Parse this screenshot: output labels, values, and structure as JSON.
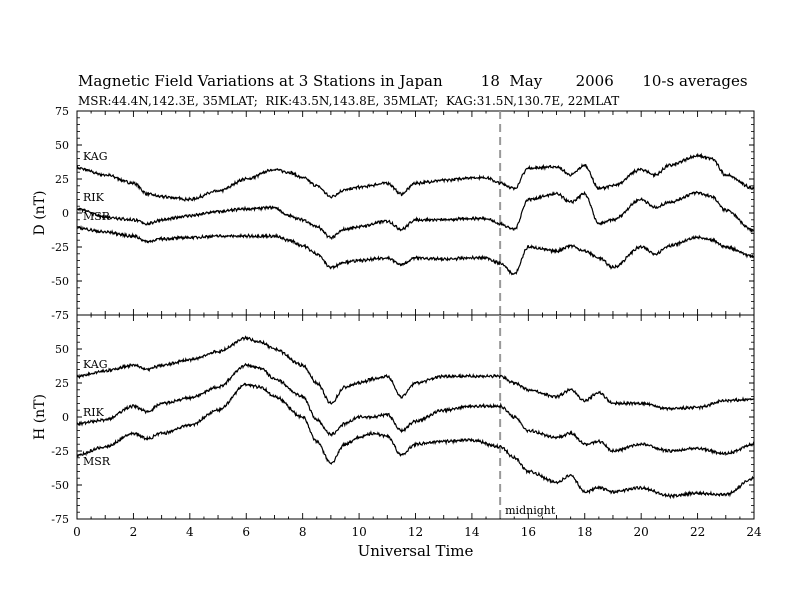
{
  "header": {
    "title": "Magnetic Field Variations at 3 Stations in Japan        18  May       2006      10-s averages",
    "subtitle": "MSR:44.4N,142.3E, 35MLAT;  RIK:43.5N,143.8E, 35MLAT;  KAG:31.5N,130.7E, 22MLAT"
  },
  "chart_data": [
    {
      "type": "line",
      "panel": "D",
      "ylabel": "D (nT)",
      "ylim": [
        -75,
        75
      ],
      "yticks": [
        75,
        50,
        25,
        0,
        -25,
        -50,
        -75
      ],
      "xlim": [
        0,
        24
      ],
      "grid": false,
      "series": [
        {
          "name": "KAG",
          "x": [
            0,
            1,
            2,
            2.5,
            3,
            4,
            5,
            6,
            7,
            7.5,
            8,
            8.5,
            9,
            9.5,
            10,
            11,
            11.5,
            12,
            13,
            14,
            14.5,
            15,
            15.5,
            16,
            17,
            17.5,
            18,
            18.5,
            19,
            20,
            20.5,
            21,
            22,
            22.5,
            23,
            24
          ],
          "values": [
            33,
            28,
            22,
            14,
            12,
            10,
            16,
            25,
            32,
            30,
            26,
            20,
            12,
            17,
            19,
            22,
            14,
            22,
            24,
            26,
            26,
            22,
            18,
            33,
            34,
            28,
            35,
            18,
            20,
            32,
            28,
            35,
            42,
            40,
            28,
            18
          ]
        },
        {
          "name": "RIK",
          "x": [
            0,
            1,
            2,
            2.5,
            3,
            4,
            5,
            6,
            7,
            7.5,
            8,
            8.5,
            9,
            9.5,
            10,
            11,
            11.5,
            12,
            13,
            14,
            14.5,
            15,
            15.5,
            16,
            17,
            17.5,
            18,
            18.5,
            19,
            20,
            20.5,
            21,
            22,
            22.5,
            23,
            24
          ],
          "values": [
            3,
            -3,
            -5,
            -8,
            -5,
            -2,
            1,
            3,
            4,
            -2,
            -5,
            -10,
            -18,
            -12,
            -10,
            -6,
            -12,
            -5,
            -5,
            -4,
            -4,
            -8,
            -12,
            10,
            14,
            8,
            14,
            -8,
            -5,
            10,
            4,
            8,
            15,
            12,
            2,
            -13
          ]
        },
        {
          "name": "MSR",
          "x": [
            0,
            1,
            2,
            2.5,
            3,
            4,
            5,
            6,
            7,
            7.5,
            8,
            8.5,
            9,
            9.5,
            10,
            11,
            11.5,
            12,
            13,
            14,
            14.5,
            15,
            15.5,
            16,
            17,
            17.5,
            18,
            18.5,
            19,
            20,
            20.5,
            21,
            22,
            22.5,
            23,
            24
          ],
          "values": [
            -11,
            -14,
            -17,
            -21,
            -19,
            -18,
            -17,
            -17,
            -17,
            -20,
            -24,
            -30,
            -40,
            -36,
            -35,
            -33,
            -38,
            -33,
            -34,
            -33,
            -33,
            -37,
            -45,
            -25,
            -28,
            -24,
            -28,
            -33,
            -40,
            -25,
            -30,
            -24,
            -18,
            -20,
            -25,
            -32
          ]
        }
      ],
      "annotations": [
        {
          "text": "midnight",
          "x": 15
        }
      ]
    },
    {
      "type": "line",
      "panel": "H",
      "ylabel": "H (nT)",
      "xlabel": "Universal Time",
      "ylim": [
        -75,
        75
      ],
      "yticks": [
        50,
        25,
        0,
        -25,
        -50,
        -75
      ],
      "xlim": [
        0,
        24
      ],
      "xticks": [
        0,
        2,
        4,
        6,
        8,
        10,
        12,
        14,
        16,
        18,
        20,
        22,
        24
      ],
      "grid": false,
      "series": [
        {
          "name": "KAG",
          "x": [
            0,
            1,
            2,
            2.5,
            3,
            4,
            5,
            6,
            6.5,
            7,
            8,
            8.5,
            9,
            9.5,
            10,
            10.5,
            11,
            11.5,
            12,
            13,
            14,
            15,
            15.5,
            16,
            17,
            17.5,
            18,
            18.5,
            19,
            20,
            21,
            22,
            23,
            24
          ],
          "values": [
            30,
            34,
            38,
            35,
            38,
            42,
            48,
            58,
            55,
            50,
            38,
            25,
            10,
            22,
            25,
            28,
            30,
            15,
            25,
            30,
            30,
            30,
            25,
            20,
            15,
            20,
            12,
            18,
            10,
            10,
            6,
            7,
            12,
            13
          ]
        },
        {
          "name": "RIK",
          "x": [
            0,
            1,
            2,
            2.5,
            3,
            4,
            5,
            6,
            6.5,
            7,
            8,
            8.5,
            9,
            9.5,
            10,
            10.5,
            11,
            11.5,
            12,
            13,
            14,
            15,
            15.5,
            16,
            17,
            17.5,
            18,
            18.5,
            19,
            20,
            21,
            22,
            23,
            24
          ],
          "values": [
            -5,
            -2,
            8,
            4,
            10,
            14,
            22,
            38,
            36,
            28,
            15,
            -2,
            -13,
            -5,
            0,
            0,
            2,
            -10,
            -3,
            5,
            8,
            8,
            0,
            -10,
            -15,
            -12,
            -20,
            -18,
            -25,
            -20,
            -25,
            -23,
            -27,
            -20
          ]
        },
        {
          "name": "MSR",
          "x": [
            0,
            1,
            2,
            2.5,
            3,
            4,
            5,
            6,
            6.5,
            7,
            8,
            8.5,
            9,
            9.5,
            10,
            10.5,
            11,
            11.5,
            12,
            13,
            14,
            15,
            15.5,
            16,
            17,
            17.5,
            18,
            18.5,
            19,
            20,
            21,
            22,
            23,
            24
          ],
          "values": [
            -28,
            -22,
            -12,
            -16,
            -12,
            -6,
            5,
            24,
            22,
            15,
            0,
            -18,
            -34,
            -20,
            -15,
            -12,
            -14,
            -28,
            -20,
            -18,
            -17,
            -22,
            -30,
            -40,
            -48,
            -43,
            -55,
            -52,
            -55,
            -52,
            -58,
            -56,
            -57,
            -45
          ]
        }
      ],
      "annotations": [
        {
          "text": "midnight",
          "x": 15
        }
      ]
    }
  ]
}
